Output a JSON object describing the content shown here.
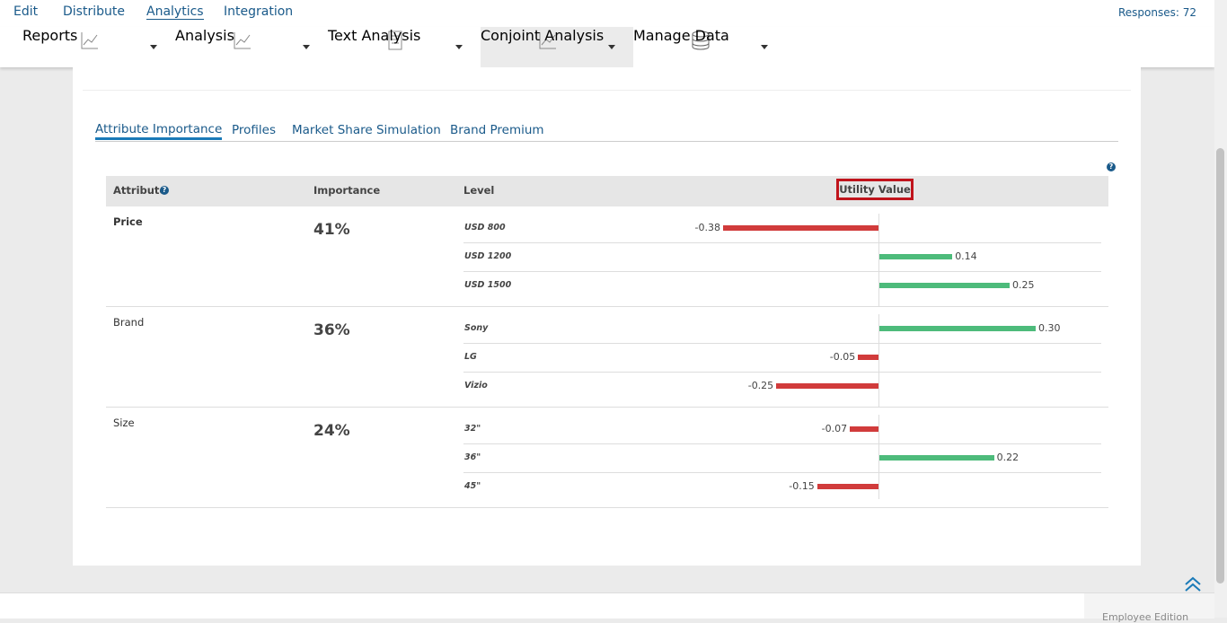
{
  "nav": {
    "tabs": [
      "Edit",
      "Distribute",
      "Analytics",
      "Integration"
    ],
    "responses": "Responses: 72"
  },
  "toolbar": [
    "Reports",
    "Analysis",
    "Text Analysis",
    "Conjoint Analysis",
    "Manage Data"
  ],
  "subtabs": [
    "Attribute Importance",
    "Profiles",
    "Market Share Simulation",
    "Brand Premium"
  ],
  "table": {
    "headers": [
      "Attribute",
      "Importance",
      "Level",
      "Utility Value"
    ],
    "rows": [
      {
        "attribute": "Price",
        "importance": "41%",
        "levels": [
          "USD 800",
          "USD 1200",
          "USD 1500"
        ],
        "values": [
          -0.38,
          0.14,
          0.25
        ],
        "value_labels": [
          "-0.38",
          "0.14",
          "0.25"
        ]
      },
      {
        "attribute": "Brand",
        "importance": "36%",
        "levels": [
          "Sony",
          "LG",
          "Vizio"
        ],
        "values": [
          0.3,
          -0.05,
          -0.25
        ],
        "value_labels": [
          "0.30",
          "-0.05",
          "-0.25"
        ]
      },
      {
        "attribute": "Size",
        "importance": "24%",
        "levels": [
          "32\"",
          "36\"",
          "45\""
        ],
        "values": [
          -0.07,
          0.22,
          -0.15
        ],
        "value_labels": [
          "-0.07",
          "0.22",
          "-0.15"
        ]
      }
    ]
  },
  "footer": "Employee Edition"
}
